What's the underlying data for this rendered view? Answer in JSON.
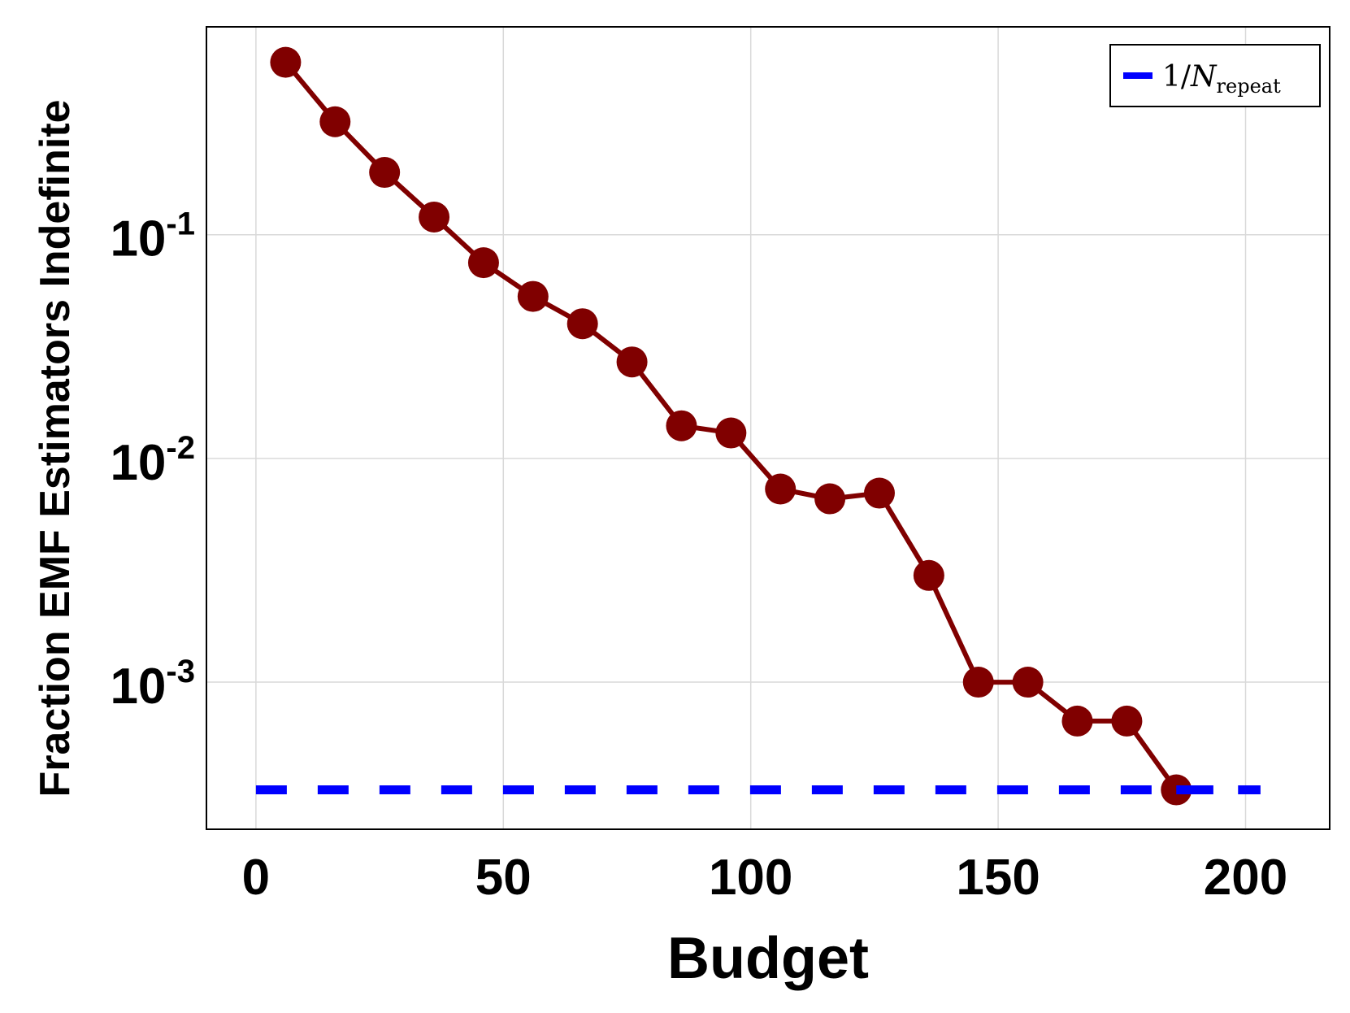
{
  "chart_data": {
    "type": "line",
    "xlabel": "Budget",
    "ylabel": "Fraction EMF Estimators Indefinite",
    "xlim": [
      -10,
      217
    ],
    "ylim": [
      0.00022,
      0.85
    ],
    "yscale": "log",
    "grid": true,
    "legend_position": "top-right",
    "x_ticks": [
      0,
      50,
      100,
      150,
      200
    ],
    "y_ticks": [
      {
        "value": 0.1,
        "base": "10",
        "exponent": "-1"
      },
      {
        "value": 0.01,
        "base": "10",
        "exponent": "-2"
      },
      {
        "value": 0.001,
        "base": "10",
        "exponent": "-3"
      }
    ],
    "series": [
      {
        "color": "#800000",
        "style": "line-with-markers",
        "x": [
          6,
          16,
          26,
          36,
          46,
          56,
          66,
          76,
          86,
          96,
          106,
          116,
          126,
          136,
          146,
          156,
          166,
          176,
          186
        ],
        "y": [
          0.59,
          0.32,
          0.19,
          0.12,
          0.075,
          0.053,
          0.04,
          0.027,
          0.014,
          0.013,
          0.0073,
          0.0066,
          0.007,
          0.003,
          0.001,
          0.001,
          0.00067,
          0.00067,
          0.00033
        ]
      },
      {
        "name_prefix": "1/",
        "name_main": "N",
        "name_sub": "repeat",
        "color": "#0000ff",
        "style": "dashed",
        "x": [
          0,
          203
        ],
        "y": [
          0.00033,
          0.00033
        ]
      }
    ]
  }
}
